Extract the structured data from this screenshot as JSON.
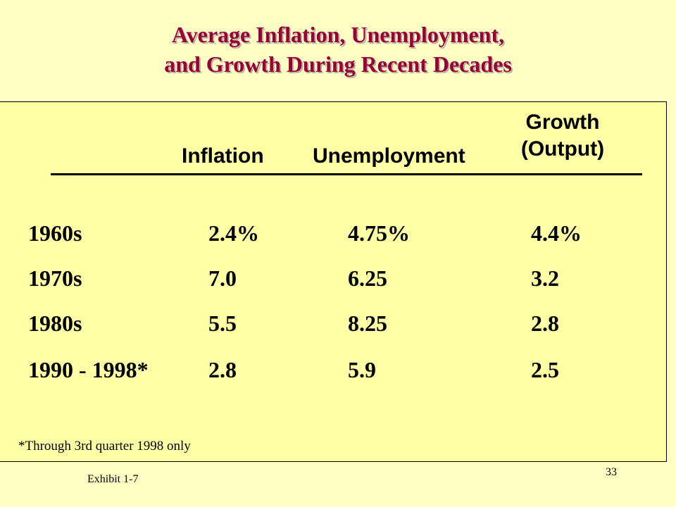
{
  "title": {
    "line1": "Average Inflation, Unemployment,",
    "line2": "and Growth During Recent Decades"
  },
  "table": {
    "headers": {
      "inflation": "Inflation",
      "unemployment": "Unemployment",
      "growth_line1": "Growth",
      "growth_line2": "(Output)"
    },
    "rows": [
      {
        "decade": "1960s",
        "inflation": "2.4%",
        "unemployment": "4.75%",
        "growth": "4.4%"
      },
      {
        "decade": "1970s",
        "inflation": "7.0",
        "unemployment": "6.25",
        "growth": "3.2"
      },
      {
        "decade": "1980s",
        "inflation": "5.5",
        "unemployment": "8.25",
        "growth": "2.8"
      },
      {
        "decade": "1990 - 1998*",
        "inflation": "2.8",
        "unemployment": "5.9",
        "growth": "2.5"
      }
    ],
    "footnote": "*Through 3rd quarter 1998 only"
  },
  "footer": {
    "exhibit": "Exhibit 1-7",
    "page_number": "33"
  },
  "colors": {
    "background": "#ffffc4",
    "panel": "#ffffa6",
    "title": "#99003a"
  }
}
